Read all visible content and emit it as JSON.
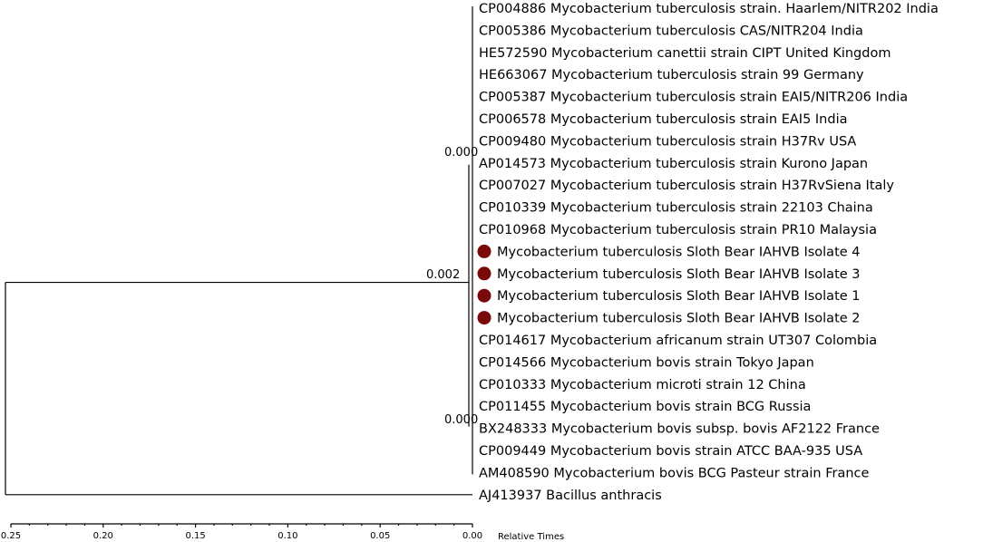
{
  "tree": {
    "marker_color": "#7a0a0a",
    "line_color": "#000000",
    "leaves": [
      {
        "label": "CP004886 Mycobacterium tuberculosis strain. Haarlem/NITR202 India",
        "marker": false
      },
      {
        "label": "CP005386 Mycobacterium tuberculosis CAS/NITR204 India",
        "marker": false
      },
      {
        "label": "HE572590 Mycobacterium canettii strain CIPT United Kingdom",
        "marker": false
      },
      {
        "label": "HE663067 Mycobacterium tuberculosis strain 99 Germany",
        "marker": false
      },
      {
        "label": "CP005387 Mycobacterium tuberculosis strain EAI5/NITR206 India",
        "marker": false
      },
      {
        "label": "CP006578 Mycobacterium tuberculosis strain EAI5 India",
        "marker": false
      },
      {
        "label": "CP009480 Mycobacterium tuberculosis strain H37Rv USA",
        "marker": false
      },
      {
        "label": "AP014573 Mycobacterium tuberculosis strain Kurono Japan",
        "marker": false
      },
      {
        "label": "CP007027 Mycobacterium tuberculosis strain H37RvSiena Italy",
        "marker": false
      },
      {
        "label": "CP010339 Mycobacterium tuberculosis strain 22103 Chaina",
        "marker": false
      },
      {
        "label": "CP010968 Mycobacterium tuberculosis strain PR10 Malaysia",
        "marker": false
      },
      {
        "label": "Mycobacterium tuberculosis Sloth Bear IAHVB Isolate 4",
        "marker": true
      },
      {
        "label": "Mycobacterium tuberculosis Sloth Bear IAHVB Isolate 3",
        "marker": true
      },
      {
        "label": "Mycobacterium tuberculosis Sloth Bear IAHVB Isolate 1",
        "marker": true
      },
      {
        "label": "Mycobacterium tuberculosis Sloth Bear IAHVB Isolate 2",
        "marker": true
      },
      {
        "label": "CP014617 Mycobacterium africanum strain UT307 Colombia",
        "marker": false
      },
      {
        "label": "CP014566 Mycobacterium bovis strain Tokyo Japan",
        "marker": false
      },
      {
        "label": "CP010333 Mycobacterium microti strain 12 China",
        "marker": false
      },
      {
        "label": "CP011455 Mycobacterium bovis strain BCG Russia",
        "marker": false
      },
      {
        "label": "BX248333 Mycobacterium bovis subsp. bovis AF2122 France",
        "marker": false
      },
      {
        "label": "CP009449 Mycobacterium bovis strain ATCC BAA-935 USA",
        "marker": false
      },
      {
        "label": "AM408590 Mycobacterium bovis BCG Pasteur strain France",
        "marker": false
      },
      {
        "label": "AJ413937 Bacillus anthracis",
        "marker": false
      }
    ],
    "node_labels": {
      "upper_clade": "0.000",
      "root_clade": "0.002",
      "lower_clade": "0.000"
    },
    "axis": {
      "ticks": [
        "0.25",
        "0.20",
        "0.15",
        "0.10",
        "0.05",
        "0.00"
      ],
      "title": "Relative Times"
    }
  }
}
